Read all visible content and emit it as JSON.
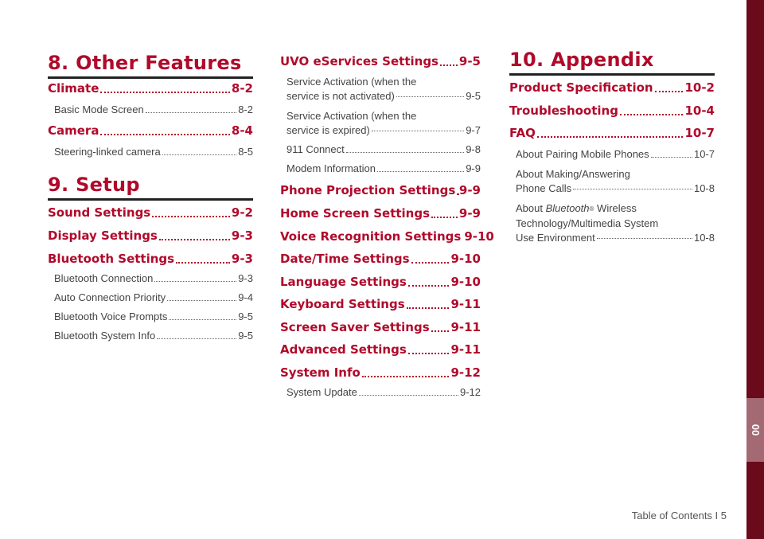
{
  "col1": {
    "ch8": "8. Other Features",
    "climate": {
      "title": "Climate",
      "page": "8-2"
    },
    "basic_mode": {
      "title": "Basic Mode Screen",
      "page": "8-2"
    },
    "camera": {
      "title": "Camera",
      "page": "8-4"
    },
    "steering_cam": {
      "title": "Steering-linked camera",
      "page": "8-5"
    },
    "ch9": "9. Setup",
    "sound": {
      "title": "Sound Settings",
      "page": "9-2"
    },
    "display": {
      "title": "Display Settings",
      "page": "9-3"
    },
    "bluetooth": {
      "title": "Bluetooth Settings",
      "page": "9-3"
    },
    "bt_conn": {
      "title": "Bluetooth Connection",
      "page": "9-3"
    },
    "auto_conn": {
      "title": "Auto Connection Priority",
      "page": "9-4"
    },
    "bt_voice": {
      "title": "Bluetooth Voice Prompts",
      "page": "9-5"
    },
    "bt_info": {
      "title": "Bluetooth System Info",
      "page": "9-5"
    }
  },
  "col2": {
    "uvo": {
      "title": "UVO eServices Settings",
      "page": "9-5"
    },
    "svc_not": {
      "line1": "Service Activation (when the",
      "line2": "service is not activated)",
      "page": "9-5"
    },
    "svc_exp": {
      "line1": "Service Activation (when the",
      "line2": "service is expired)",
      "page": "9-7"
    },
    "connect911": {
      "title": "911 Connect",
      "page": "9-8"
    },
    "modem": {
      "title": "Modem Information",
      "page": "9-9"
    },
    "phone_proj": {
      "title": "Phone Projection Settings",
      "page": "9-9"
    },
    "home_screen": {
      "title": "Home Screen Settings",
      "page": "9-9"
    },
    "voice_rec": {
      "title": "Voice Recognition Settings",
      "page": "9-10"
    },
    "date_time": {
      "title": "Date/Time Settings",
      "page": "9-10"
    },
    "language": {
      "title": "Language Settings",
      "page": "9-10"
    },
    "keyboard": {
      "title": "Keyboard Settings",
      "page": "9-11"
    },
    "screen_saver": {
      "title": "Screen Saver Settings",
      "page": "9-11"
    },
    "advanced": {
      "title": "Advanced Settings",
      "page": "9-11"
    },
    "system_info": {
      "title": "System Info",
      "page": "9-12"
    },
    "system_update": {
      "title": "System Update",
      "page": "9-12"
    }
  },
  "col3": {
    "ch10": "10. Appendix",
    "product_spec": {
      "title": "Product Specification",
      "page": "10-2"
    },
    "troubleshooting": {
      "title": "Troubleshooting",
      "page": "10-4"
    },
    "faq": {
      "title": "FAQ",
      "page": "10-7"
    },
    "pairing": {
      "title": "About Pairing Mobile Phones",
      "page": "10-7"
    },
    "making": {
      "line1": "About Making/Answering",
      "line2": "Phone Calls",
      "page": "10-8"
    },
    "bt_wireless": {
      "line1_a": "About ",
      "line1_b": "Bluetooth",
      "line1_reg": "®",
      "line1_c": " Wireless",
      "line2": "Technology/Multimedia System",
      "line3": "Use Environment",
      "page": "10-8"
    }
  },
  "sidebar": {
    "label": "00"
  },
  "footer": "Table of Contents I 5"
}
